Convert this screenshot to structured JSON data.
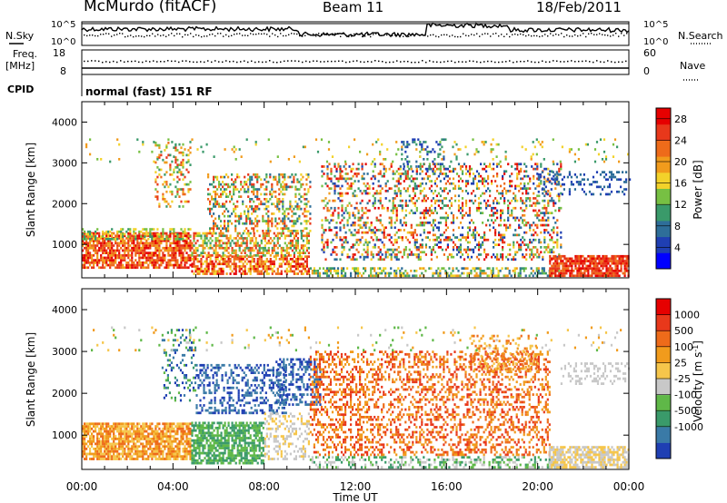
{
  "header": {
    "station": "McMurdo (fitACF)",
    "beam": "Beam 11",
    "date": "18/Feb/2011"
  },
  "summary": {
    "nsky_label": "N.Sky",
    "nsearch_label": "N.Search",
    "freq_label_1": "Freq.",
    "freq_label_2": "[MHz]",
    "nave_label": "Nave",
    "cpid_label": "CPID",
    "cpid_value": "normal (fast) 151 RF",
    "noise_ticks": [
      "10^5",
      "10^0"
    ],
    "noise_ticks_right": [
      "10^5",
      "10^0"
    ],
    "freq_ticks": [
      "18",
      "8"
    ],
    "nave_ticks": [
      "60",
      "0"
    ]
  },
  "chart_data": [
    {
      "type": "heatmap",
      "title": "",
      "xlabel": "",
      "ylabel": "Slant Range [km]",
      "xlim": [
        "00:00",
        "24:00"
      ],
      "ylim": [
        180,
        4500
      ],
      "yticks": [
        1000,
        2000,
        3000,
        4000
      ],
      "colorbar": {
        "label": "Power [dB]",
        "range": [
          0,
          30
        ],
        "ticks": [
          4,
          8,
          12,
          16,
          20,
          24,
          28
        ],
        "colors": [
          "#0000ff",
          "#1f3fb3",
          "#2e6e99",
          "#3a9a6a",
          "#77c043",
          "#f3d22a",
          "#f19b1c",
          "#ee6b1a",
          "#e8381b",
          "#e60000"
        ]
      }
    },
    {
      "type": "heatmap",
      "title": "",
      "xlabel": "Time UT",
      "ylabel": "Slant Range [km]",
      "xlim": [
        "00:00",
        "24:00"
      ],
      "ylim": [
        180,
        4500
      ],
      "yticks": [
        1000,
        2000,
        3000,
        4000
      ],
      "xticks": [
        "00:00",
        "04:00",
        "08:00",
        "12:00",
        "16:00",
        "20:00",
        "00:00"
      ],
      "colorbar": {
        "label": "Velocity [m s-1]",
        "ticks": [
          "1000",
          "500",
          "100",
          "25",
          "-25",
          "-100",
          "-500",
          "-1000"
        ],
        "colors": [
          "#1f3fb3",
          "#3a7aa7",
          "#3a9a6a",
          "#5fb848",
          "#c8c8c8",
          "#f6c64b",
          "#f19b1c",
          "#ee6b1a",
          "#e8381b",
          "#e60000"
        ]
      }
    }
  ]
}
